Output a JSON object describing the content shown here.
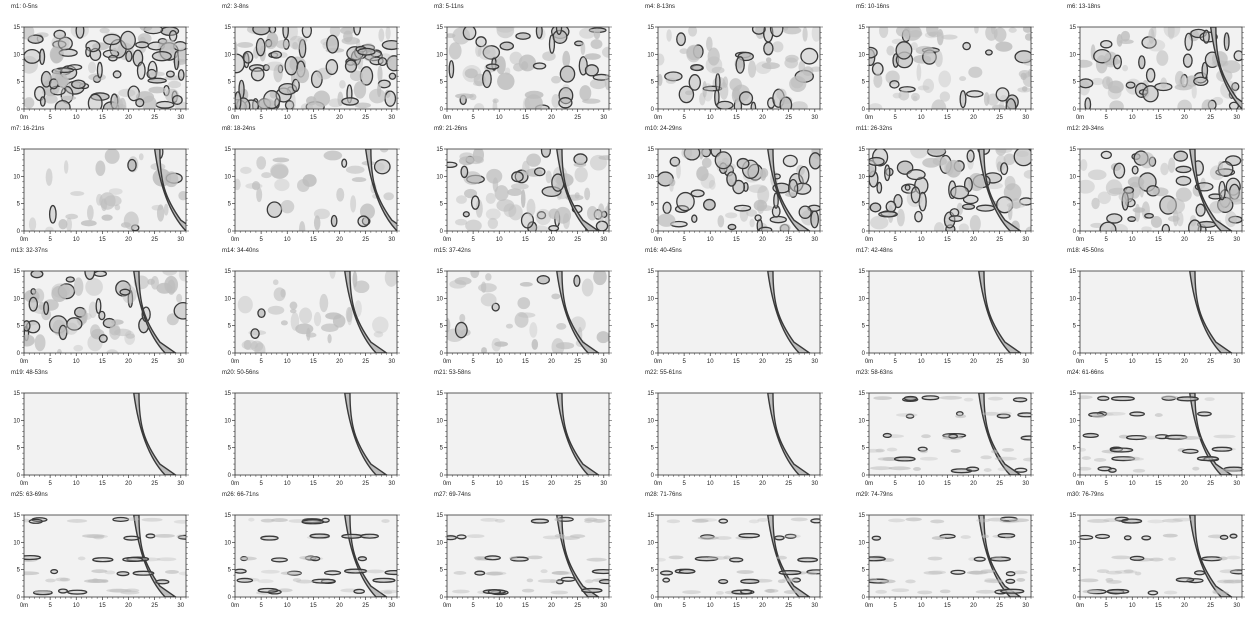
{
  "figure": {
    "layout": {
      "rows": 5,
      "cols": 6
    },
    "colors": {
      "contour_stroke": "#3a3a3a",
      "contour_fill": "#bdbdbd",
      "plot_background": "#f2f2f2",
      "axis": "#333333"
    }
  },
  "chart_data": [
    {
      "title": "m1: 0-5ns",
      "type": "heatmap",
      "xlim": [
        0,
        31
      ],
      "ylim": [
        0,
        15
      ],
      "xticks": [
        "0m",
        "5",
        "10",
        "15",
        "20",
        "25",
        "30"
      ],
      "yticks": [
        "0",
        "5",
        "10",
        "15"
      ],
      "pattern": "dense"
    },
    {
      "title": "m2: 3-8ns",
      "type": "heatmap",
      "xlim": [
        0,
        31
      ],
      "ylim": [
        0,
        15
      ],
      "xticks": [
        "0m",
        "5",
        "10",
        "15",
        "20",
        "25",
        "30"
      ],
      "yticks": [
        "0",
        "5",
        "10",
        "15"
      ],
      "pattern": "dense"
    },
    {
      "title": "m3: 5-11ns",
      "type": "heatmap",
      "xlim": [
        0,
        31
      ],
      "ylim": [
        0,
        15
      ],
      "xticks": [
        "0m",
        "5",
        "10",
        "15",
        "20",
        "25",
        "30"
      ],
      "yticks": [
        "0",
        "5",
        "10",
        "15"
      ],
      "pattern": "medium"
    },
    {
      "title": "m4: 8-13ns",
      "type": "heatmap",
      "xlim": [
        0,
        31
      ],
      "ylim": [
        0,
        15
      ],
      "xticks": [
        "0m",
        "5",
        "10",
        "15",
        "20",
        "25",
        "30"
      ],
      "yticks": [
        "0",
        "5",
        "10",
        "15"
      ],
      "pattern": "medium"
    },
    {
      "title": "m5: 10-16ns",
      "type": "heatmap",
      "xlim": [
        0,
        31
      ],
      "ylim": [
        0,
        15
      ],
      "xticks": [
        "0m",
        "5",
        "10",
        "15",
        "20",
        "25",
        "30"
      ],
      "yticks": [
        "0",
        "5",
        "10",
        "15"
      ],
      "pattern": "medium"
    },
    {
      "title": "m6: 13-18ns",
      "type": "heatmap",
      "xlim": [
        0,
        31
      ],
      "ylim": [
        0,
        15
      ],
      "xticks": [
        "0m",
        "5",
        "10",
        "15",
        "20",
        "25",
        "30"
      ],
      "yticks": [
        "0",
        "5",
        "10",
        "15"
      ],
      "pattern": "medium-right"
    },
    {
      "title": "m7: 16-21ns",
      "type": "heatmap",
      "xlim": [
        0,
        31
      ],
      "ylim": [
        0,
        15
      ],
      "xticks": [
        "0m",
        "5",
        "10",
        "15",
        "20",
        "25",
        "30"
      ],
      "yticks": [
        "0",
        "5",
        "10",
        "15"
      ],
      "pattern": "sparse-right"
    },
    {
      "title": "m8: 18-24ns",
      "type": "heatmap",
      "xlim": [
        0,
        31
      ],
      "ylim": [
        0,
        15
      ],
      "xticks": [
        "0m",
        "5",
        "10",
        "15",
        "20",
        "25",
        "30"
      ],
      "yticks": [
        "0",
        "5",
        "10",
        "15"
      ],
      "pattern": "sparse-right"
    },
    {
      "title": "m9: 21-26ns",
      "type": "heatmap",
      "xlim": [
        0,
        31
      ],
      "ylim": [
        0,
        15
      ],
      "xticks": [
        "0m",
        "5",
        "10",
        "15",
        "20",
        "25",
        "30"
      ],
      "yticks": [
        "0",
        "5",
        "10",
        "15"
      ],
      "pattern": "medium-band"
    },
    {
      "title": "m10: 24-29ns",
      "type": "heatmap",
      "xlim": [
        0,
        31
      ],
      "ylim": [
        0,
        15
      ],
      "xticks": [
        "0m",
        "5",
        "10",
        "15",
        "20",
        "25",
        "30"
      ],
      "yticks": [
        "0",
        "5",
        "10",
        "15"
      ],
      "pattern": "dense-band"
    },
    {
      "title": "m11: 26-32ns",
      "type": "heatmap",
      "xlim": [
        0,
        31
      ],
      "ylim": [
        0,
        15
      ],
      "xticks": [
        "0m",
        "5",
        "10",
        "15",
        "20",
        "25",
        "30"
      ],
      "yticks": [
        "0",
        "5",
        "10",
        "15"
      ],
      "pattern": "dense-band"
    },
    {
      "title": "m12: 29-34ns",
      "type": "heatmap",
      "xlim": [
        0,
        31
      ],
      "ylim": [
        0,
        15
      ],
      "xticks": [
        "0m",
        "5",
        "10",
        "15",
        "20",
        "25",
        "30"
      ],
      "yticks": [
        "0",
        "5",
        "10",
        "15"
      ],
      "pattern": "dense-band"
    },
    {
      "title": "m13: 32-37ns",
      "type": "heatmap",
      "xlim": [
        0,
        31
      ],
      "ylim": [
        0,
        15
      ],
      "xticks": [
        "0m",
        "5",
        "10",
        "15",
        "20",
        "25",
        "30"
      ],
      "yticks": [
        "0",
        "5",
        "10",
        "15"
      ],
      "pattern": "medium-band"
    },
    {
      "title": "m14: 34-40ns",
      "type": "heatmap",
      "xlim": [
        0,
        31
      ],
      "ylim": [
        0,
        15
      ],
      "xticks": [
        "0m",
        "5",
        "10",
        "15",
        "20",
        "25",
        "30"
      ],
      "yticks": [
        "0",
        "5",
        "10",
        "15"
      ],
      "pattern": "sparse-band"
    },
    {
      "title": "m15: 37-42ns",
      "type": "heatmap",
      "xlim": [
        0,
        31
      ],
      "ylim": [
        0,
        15
      ],
      "xticks": [
        "0m",
        "5",
        "10",
        "15",
        "20",
        "25",
        "30"
      ],
      "yticks": [
        "0",
        "5",
        "10",
        "15"
      ],
      "pattern": "sparse-band"
    },
    {
      "title": "m16: 40-45ns",
      "type": "heatmap",
      "xlim": [
        0,
        31
      ],
      "ylim": [
        0,
        15
      ],
      "xticks": [
        "0m",
        "5",
        "10",
        "15",
        "20",
        "25",
        "30"
      ],
      "yticks": [
        "0",
        "5",
        "10",
        "15"
      ],
      "pattern": "band-only"
    },
    {
      "title": "m17: 42-48ns",
      "type": "heatmap",
      "xlim": [
        0,
        31
      ],
      "ylim": [
        0,
        15
      ],
      "xticks": [
        "0m",
        "5",
        "10",
        "15",
        "20",
        "25",
        "30"
      ],
      "yticks": [
        "0",
        "5",
        "10",
        "15"
      ],
      "pattern": "band-only"
    },
    {
      "title": "m18: 45-50ns",
      "type": "heatmap",
      "xlim": [
        0,
        31
      ],
      "ylim": [
        0,
        15
      ],
      "xticks": [
        "0m",
        "5",
        "10",
        "15",
        "20",
        "25",
        "30"
      ],
      "yticks": [
        "0",
        "5",
        "10",
        "15"
      ],
      "pattern": "band-only"
    },
    {
      "title": "m19: 48-53ns",
      "type": "heatmap",
      "xlim": [
        0,
        31
      ],
      "ylim": [
        0,
        15
      ],
      "xticks": [
        "0m",
        "5",
        "10",
        "15",
        "20",
        "25",
        "30"
      ],
      "yticks": [
        "0",
        "5",
        "10",
        "15"
      ],
      "pattern": "band-only"
    },
    {
      "title": "m20: 50-56ns",
      "type": "heatmap",
      "xlim": [
        0,
        31
      ],
      "ylim": [
        0,
        15
      ],
      "xticks": [
        "0m",
        "5",
        "10",
        "15",
        "20",
        "25",
        "30"
      ],
      "yticks": [
        "0",
        "5",
        "10",
        "15"
      ],
      "pattern": "band-only"
    },
    {
      "title": "m21: 53-58ns",
      "type": "heatmap",
      "xlim": [
        0,
        31
      ],
      "ylim": [
        0,
        15
      ],
      "xticks": [
        "0m",
        "5",
        "10",
        "15",
        "20",
        "25",
        "30"
      ],
      "yticks": [
        "0",
        "5",
        "10",
        "15"
      ],
      "pattern": "band-only"
    },
    {
      "title": "m22: 55-61ns",
      "type": "heatmap",
      "xlim": [
        0,
        31
      ],
      "ylim": [
        0,
        15
      ],
      "xticks": [
        "0m",
        "5",
        "10",
        "15",
        "20",
        "25",
        "30"
      ],
      "yticks": [
        "0",
        "5",
        "10",
        "15"
      ],
      "pattern": "band-only"
    },
    {
      "title": "m23: 58-63ns",
      "type": "heatmap",
      "xlim": [
        0,
        31
      ],
      "ylim": [
        0,
        15
      ],
      "xticks": [
        "0m",
        "5",
        "10",
        "15",
        "20",
        "25",
        "30"
      ],
      "yticks": [
        "0",
        "5",
        "10",
        "15"
      ],
      "pattern": "band-streaks"
    },
    {
      "title": "m24: 61-66ns",
      "type": "heatmap",
      "xlim": [
        0,
        31
      ],
      "ylim": [
        0,
        15
      ],
      "xticks": [
        "0m",
        "5",
        "10",
        "15",
        "20",
        "25",
        "30"
      ],
      "yticks": [
        "0",
        "5",
        "10",
        "15"
      ],
      "pattern": "band-streaks"
    },
    {
      "title": "m25: 63-69ns",
      "type": "heatmap",
      "xlim": [
        0,
        31
      ],
      "ylim": [
        0,
        15
      ],
      "xticks": [
        "0m",
        "5",
        "10",
        "15",
        "20",
        "25",
        "30"
      ],
      "yticks": [
        "0",
        "5",
        "10",
        "15"
      ],
      "pattern": "streaks"
    },
    {
      "title": "m26: 66-71ns",
      "type": "heatmap",
      "xlim": [
        0,
        31
      ],
      "ylim": [
        0,
        15
      ],
      "xticks": [
        "0m",
        "5",
        "10",
        "15",
        "20",
        "25",
        "30"
      ],
      "yticks": [
        "0",
        "5",
        "10",
        "15"
      ],
      "pattern": "streaks"
    },
    {
      "title": "m27: 69-74ns",
      "type": "heatmap",
      "xlim": [
        0,
        31
      ],
      "ylim": [
        0,
        15
      ],
      "xticks": [
        "0m",
        "5",
        "10",
        "15",
        "20",
        "25",
        "30"
      ],
      "yticks": [
        "0",
        "5",
        "10",
        "15"
      ],
      "pattern": "streaks"
    },
    {
      "title": "m28: 71-76ns",
      "type": "heatmap",
      "xlim": [
        0,
        31
      ],
      "ylim": [
        0,
        15
      ],
      "xticks": [
        "0m",
        "5",
        "10",
        "15",
        "20",
        "25",
        "30"
      ],
      "yticks": [
        "0",
        "5",
        "10",
        "15"
      ],
      "pattern": "streaks"
    },
    {
      "title": "m29: 74-79ns",
      "type": "heatmap",
      "xlim": [
        0,
        31
      ],
      "ylim": [
        0,
        15
      ],
      "xticks": [
        "0m",
        "5",
        "10",
        "15",
        "20",
        "25",
        "30"
      ],
      "yticks": [
        "0",
        "5",
        "10",
        "15"
      ],
      "pattern": "streaks"
    },
    {
      "title": "m30: 76-79ns",
      "type": "heatmap",
      "xlim": [
        0,
        31
      ],
      "ylim": [
        0,
        15
      ],
      "xticks": [
        "0m",
        "5",
        "10",
        "15",
        "20",
        "25",
        "30"
      ],
      "yticks": [
        "0",
        "5",
        "10",
        "15"
      ],
      "pattern": "streaks"
    }
  ]
}
